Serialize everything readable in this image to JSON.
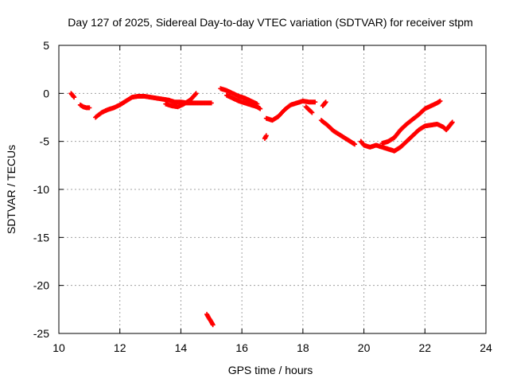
{
  "chart_data": {
    "type": "scatter",
    "title": "Day 127 of 2025, Sidereal Day-to-day VTEC variation (SDTVAR) for receiver stpm",
    "xlabel": "GPS time / hours",
    "ylabel": "SDTVAR / TECUs",
    "xlim": [
      10,
      24
    ],
    "ylim": [
      -25,
      5
    ],
    "xticks": [
      10,
      12,
      14,
      16,
      18,
      20,
      22,
      24
    ],
    "yticks": [
      5,
      0,
      -5,
      -10,
      -15,
      -20,
      -25
    ],
    "grid": true,
    "marker_color": "#ff0000",
    "series": [
      {
        "name": "seg1",
        "points": [
          [
            10.4,
            0.0
          ],
          [
            10.45,
            -0.2
          ],
          [
            10.5,
            -0.4
          ]
        ]
      },
      {
        "name": "seg2",
        "points": [
          [
            10.7,
            -1.2
          ],
          [
            10.8,
            -1.4
          ],
          [
            10.9,
            -1.5
          ],
          [
            11.0,
            -1.5
          ]
        ]
      },
      {
        "name": "seg3",
        "points": [
          [
            11.2,
            -2.5
          ],
          [
            11.4,
            -2.0
          ],
          [
            11.6,
            -1.7
          ],
          [
            11.8,
            -1.5
          ],
          [
            12.0,
            -1.2
          ],
          [
            12.2,
            -0.8
          ],
          [
            12.4,
            -0.4
          ],
          [
            12.6,
            -0.3
          ],
          [
            12.8,
            -0.3
          ],
          [
            13.0,
            -0.4
          ],
          [
            13.2,
            -0.5
          ],
          [
            13.4,
            -0.6
          ],
          [
            13.6,
            -0.7
          ],
          [
            13.8,
            -0.9
          ],
          [
            14.0,
            -0.9
          ],
          [
            14.2,
            -1.0
          ],
          [
            14.4,
            -1.0
          ],
          [
            14.6,
            -1.0
          ],
          [
            14.8,
            -1.0
          ],
          [
            15.0,
            -1.0
          ]
        ]
      },
      {
        "name": "seg4",
        "points": [
          [
            13.5,
            -1.1
          ],
          [
            13.7,
            -1.3
          ],
          [
            13.9,
            -1.4
          ],
          [
            14.1,
            -1.1
          ],
          [
            14.3,
            -0.7
          ],
          [
            14.45,
            -0.2
          ],
          [
            14.5,
            0.0
          ]
        ]
      },
      {
        "name": "seg5",
        "points": [
          [
            14.85,
            -23.0
          ],
          [
            14.9,
            -23.3
          ],
          [
            15.0,
            -23.8
          ],
          [
            15.05,
            -24.1
          ]
        ]
      },
      {
        "name": "seg6",
        "points": [
          [
            15.3,
            0.5
          ],
          [
            15.5,
            0.3
          ],
          [
            15.7,
            0.0
          ],
          [
            15.9,
            -0.3
          ],
          [
            16.1,
            -0.5
          ],
          [
            16.3,
            -0.8
          ],
          [
            16.5,
            -1.1
          ]
        ]
      },
      {
        "name": "seg7",
        "points": [
          [
            15.5,
            -0.2
          ],
          [
            15.7,
            -0.5
          ],
          [
            15.9,
            -0.8
          ],
          [
            16.1,
            -1.0
          ],
          [
            16.3,
            -1.2
          ],
          [
            16.5,
            -1.4
          ],
          [
            16.6,
            -1.6
          ]
        ]
      },
      {
        "name": "seg8",
        "points": [
          [
            16.75,
            -4.7
          ],
          [
            16.8,
            -4.4
          ]
        ]
      },
      {
        "name": "seg9",
        "points": [
          [
            16.8,
            -2.6
          ],
          [
            17.0,
            -2.8
          ],
          [
            17.2,
            -2.4
          ],
          [
            17.4,
            -1.7
          ],
          [
            17.6,
            -1.2
          ],
          [
            17.8,
            -1.0
          ],
          [
            18.0,
            -0.8
          ],
          [
            18.2,
            -0.9
          ],
          [
            18.4,
            -0.9
          ]
        ]
      },
      {
        "name": "seg10",
        "points": [
          [
            18.1,
            -1.4
          ],
          [
            18.2,
            -1.7
          ],
          [
            18.3,
            -2.0
          ]
        ]
      },
      {
        "name": "seg11",
        "points": [
          [
            18.65,
            -1.3
          ],
          [
            18.7,
            -1.1
          ],
          [
            18.75,
            -0.9
          ]
        ]
      },
      {
        "name": "seg12",
        "points": [
          [
            18.6,
            -2.8
          ],
          [
            18.8,
            -3.3
          ],
          [
            19.0,
            -3.9
          ],
          [
            19.2,
            -4.3
          ],
          [
            19.4,
            -4.7
          ],
          [
            19.6,
            -5.1
          ],
          [
            19.7,
            -5.3
          ]
        ]
      },
      {
        "name": "seg13",
        "points": [
          [
            19.9,
            -5.0
          ],
          [
            20.0,
            -5.4
          ],
          [
            20.2,
            -5.6
          ],
          [
            20.4,
            -5.4
          ],
          [
            20.6,
            -5.6
          ],
          [
            20.8,
            -5.8
          ],
          [
            21.0,
            -6.0
          ],
          [
            21.2,
            -5.6
          ],
          [
            21.4,
            -5.0
          ],
          [
            21.6,
            -4.4
          ],
          [
            21.8,
            -3.8
          ],
          [
            22.0,
            -3.4
          ],
          [
            22.2,
            -3.3
          ],
          [
            22.4,
            -3.2
          ],
          [
            22.6,
            -3.5
          ],
          [
            22.7,
            -3.8
          ],
          [
            22.8,
            -3.4
          ],
          [
            22.9,
            -3.0
          ]
        ]
      },
      {
        "name": "seg14",
        "points": [
          [
            20.6,
            -5.2
          ],
          [
            20.8,
            -5.0
          ],
          [
            21.0,
            -4.6
          ],
          [
            21.2,
            -3.8
          ],
          [
            21.4,
            -3.2
          ],
          [
            21.6,
            -2.7
          ],
          [
            21.8,
            -2.2
          ],
          [
            22.0,
            -1.6
          ],
          [
            22.2,
            -1.3
          ],
          [
            22.4,
            -1.0
          ],
          [
            22.5,
            -0.8
          ]
        ]
      }
    ]
  }
}
